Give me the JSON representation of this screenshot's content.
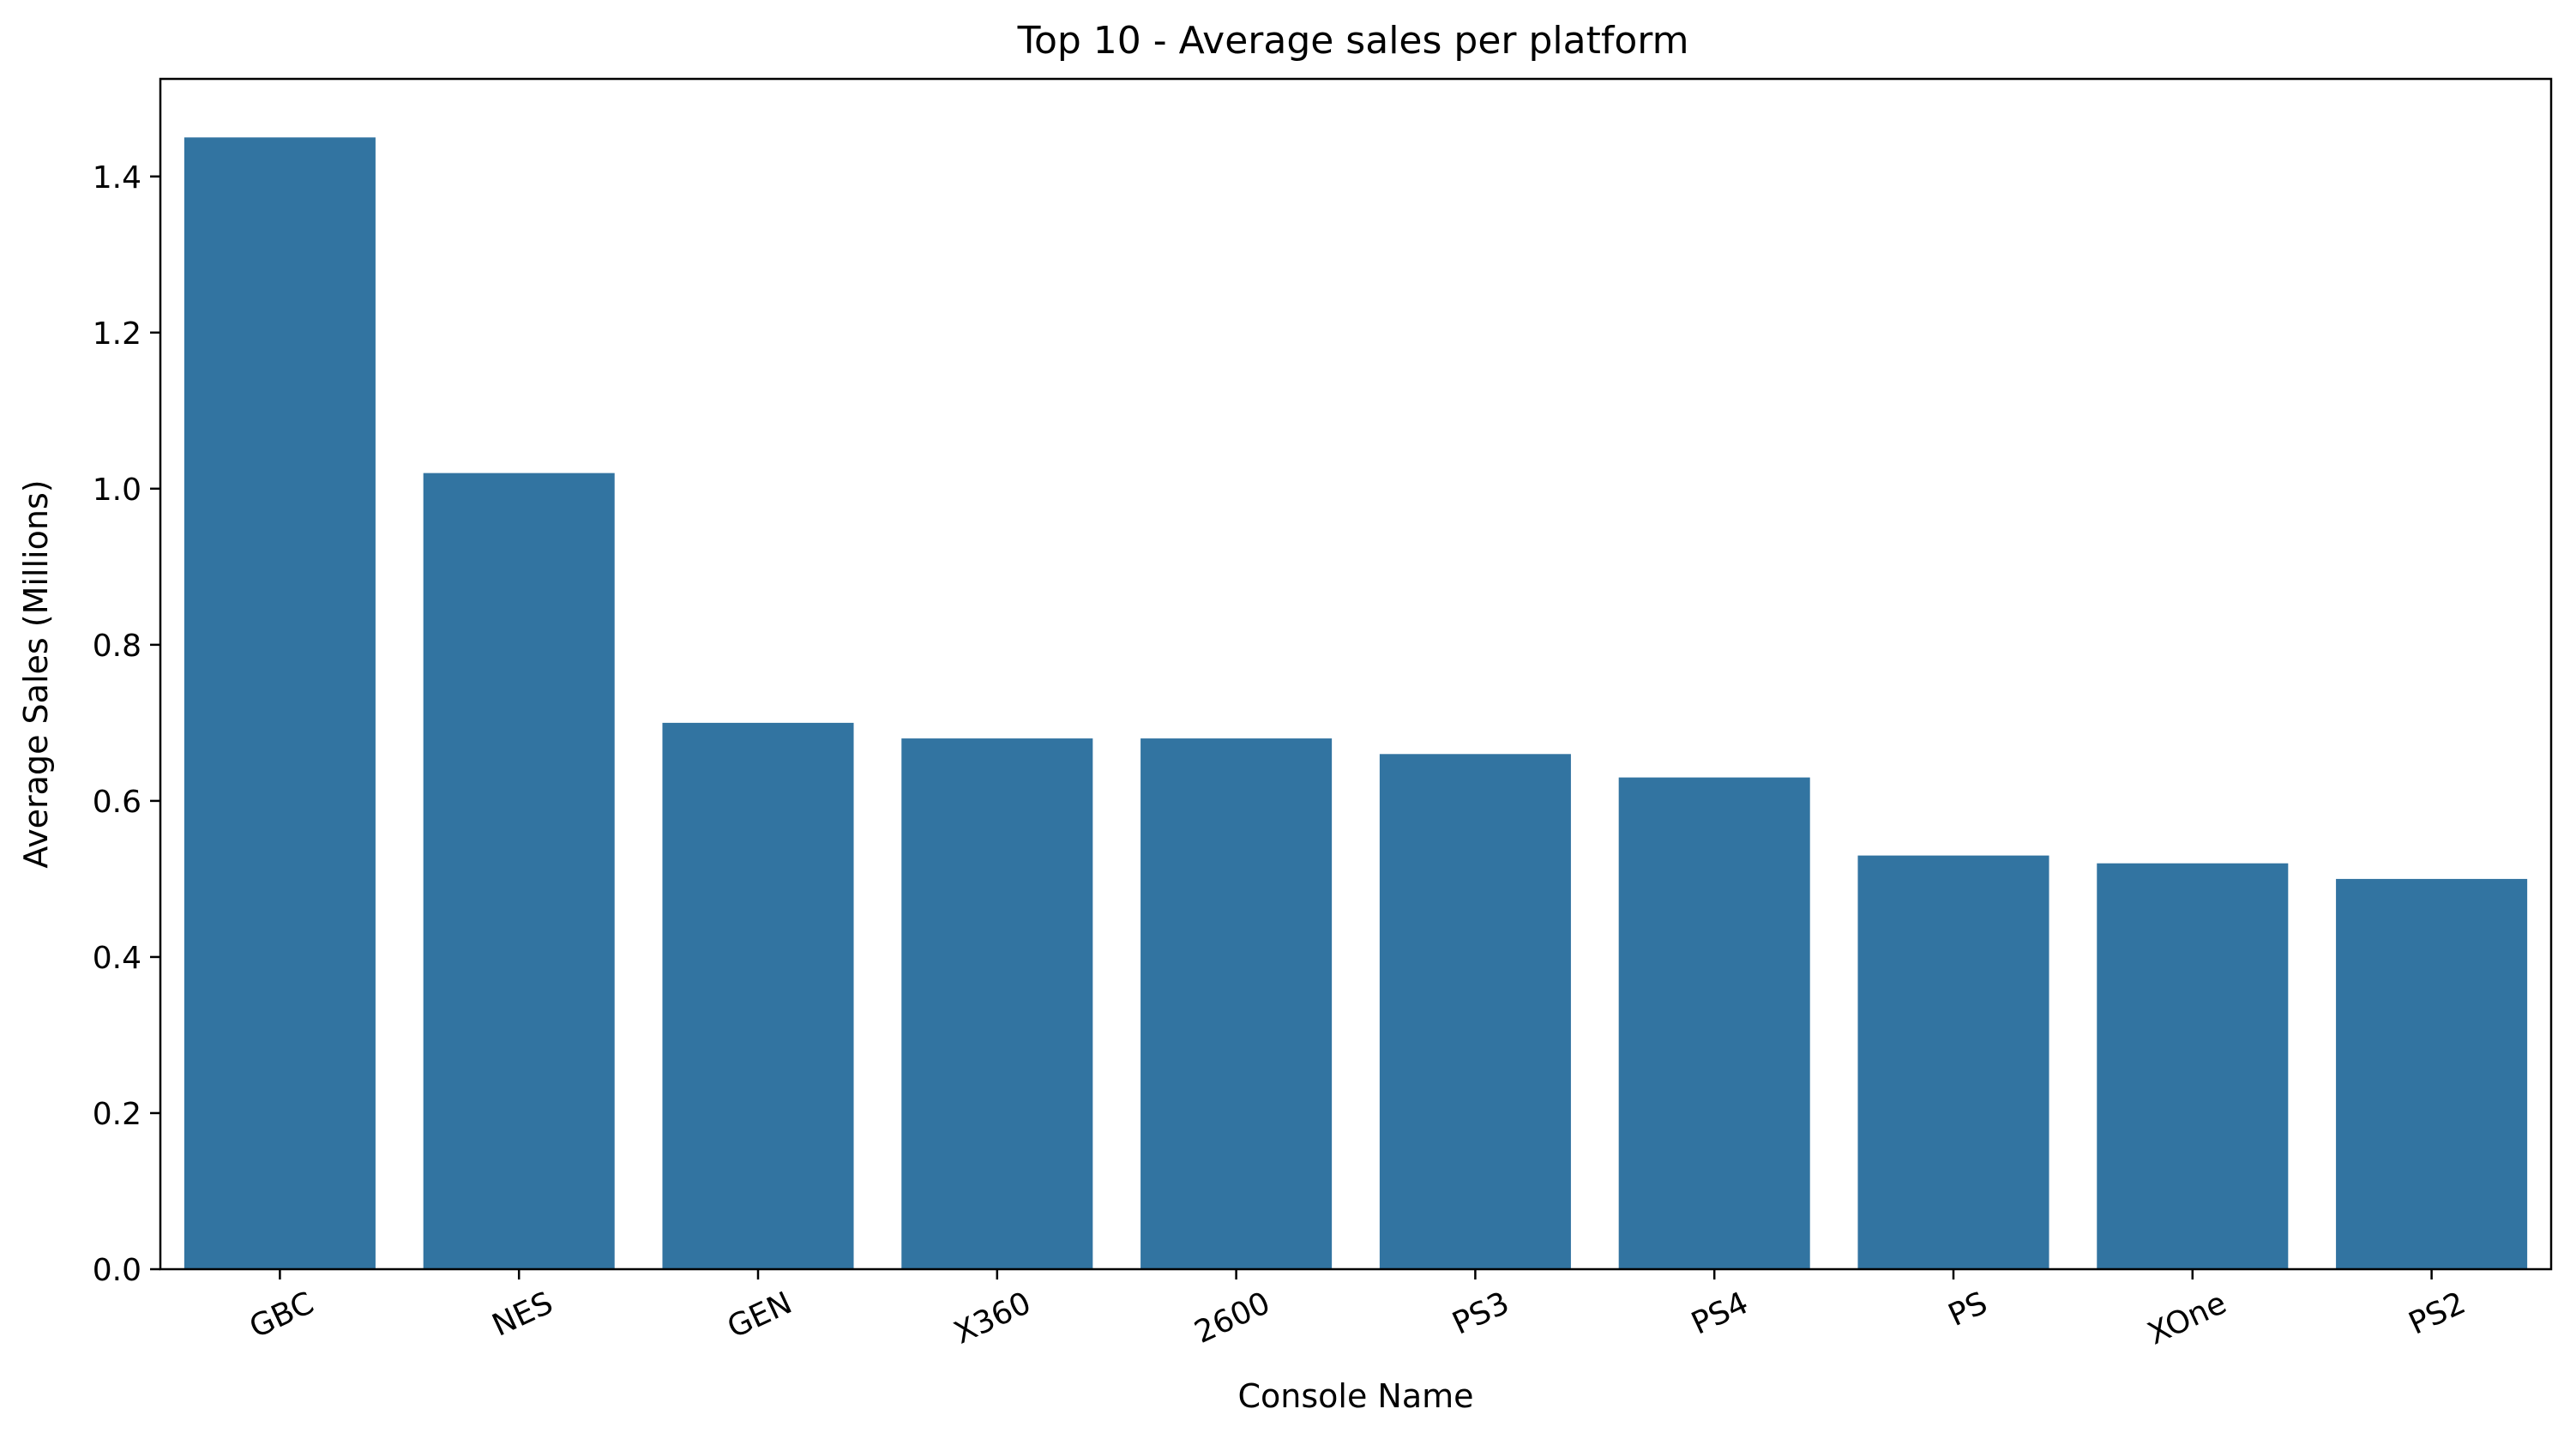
{
  "chart_data": {
    "type": "bar",
    "title": "Top 10 - Average sales per platform",
    "xlabel": "Console Name",
    "ylabel": "Average Sales (Millions)",
    "categories": [
      "GBC",
      "NES",
      "GEN",
      "X360",
      "2600",
      "PS3",
      "PS4",
      "PS",
      "XOne",
      "PS2"
    ],
    "values": [
      1.45,
      1.02,
      0.7,
      0.68,
      0.68,
      0.66,
      0.63,
      0.53,
      0.52,
      0.5
    ],
    "ylim": [
      0,
      1.525
    ],
    "yticks": [
      0.0,
      0.2,
      0.4,
      0.6,
      0.8,
      1.0,
      1.2,
      1.4
    ],
    "ytick_labels": [
      "0.0",
      "0.2",
      "0.4",
      "0.6",
      "0.8",
      "1.0",
      "1.2",
      "1.4"
    ],
    "xtick_rotation_deg": -25,
    "grid": false,
    "legend": "none",
    "colors": {
      "bar": "#3274a1",
      "axis": "#000000",
      "background": "#ffffff"
    }
  }
}
